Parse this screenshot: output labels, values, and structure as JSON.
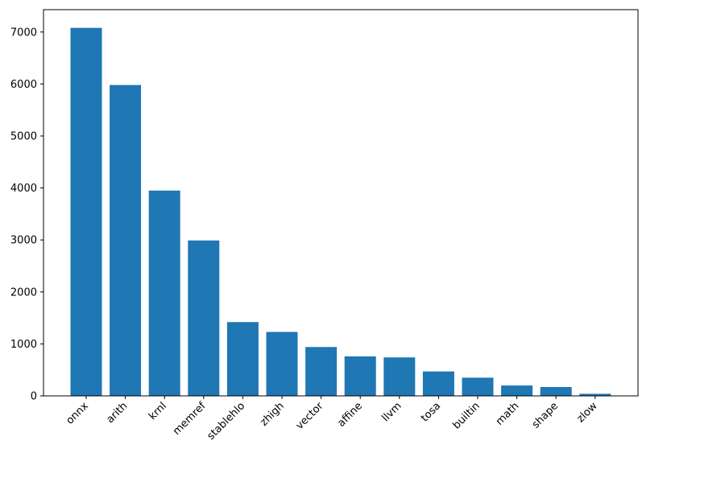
{
  "chart_data": {
    "type": "bar",
    "title": "",
    "xlabel": "",
    "ylabel": "",
    "categories": [
      "onnx",
      "arith",
      "krnl",
      "memref",
      "stablehlo",
      "zhigh",
      "vector",
      "affine",
      "llvm",
      "tosa",
      "builtin",
      "math",
      "shape",
      "zlow"
    ],
    "values": [
      7080,
      5980,
      3950,
      2990,
      1420,
      1230,
      940,
      760,
      740,
      470,
      350,
      200,
      170,
      40
    ],
    "ylim": [
      0,
      7430
    ],
    "yticks": [
      0,
      1000,
      2000,
      3000,
      4000,
      5000,
      6000,
      7000
    ],
    "xtick_rotation": 45,
    "grid": false,
    "legend": "none",
    "colors": {
      "bar": "#1f77b4",
      "axes": "#000000",
      "background": "#ffffff"
    }
  }
}
